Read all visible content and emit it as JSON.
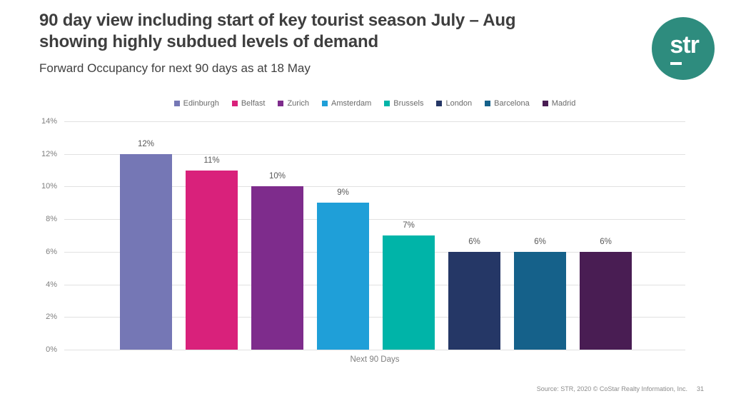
{
  "slide": {
    "title_line1": "90 day view including start of key tourist season July – Aug",
    "title_line2": "showing highly subdued levels of demand",
    "subtitle": "Forward Occupancy for next 90 days as at 18 May",
    "logo_text": "str",
    "footer_source": "Source: STR, 2020 © CoStar Realty Information, Inc.",
    "page_number": "31"
  },
  "chart_data": {
    "type": "bar",
    "title": "Forward Occupancy for next 90 days as at 18 May",
    "categories": [
      "Next 90 Days"
    ],
    "series": [
      {
        "name": "Edinburgh",
        "values": [
          12
        ],
        "color": "#7577b5"
      },
      {
        "name": "Belfast",
        "values": [
          11
        ],
        "color": "#d9217b"
      },
      {
        "name": "Zurich",
        "values": [
          10
        ],
        "color": "#7e2c8c"
      },
      {
        "name": "Amsterdam",
        "values": [
          9
        ],
        "color": "#1f9fd8"
      },
      {
        "name": "Brussels",
        "values": [
          7
        ],
        "color": "#00b4a8"
      },
      {
        "name": "London",
        "values": [
          6
        ],
        "color": "#253766"
      },
      {
        "name": "Barcelona",
        "values": [
          6
        ],
        "color": "#15618a"
      },
      {
        "name": "Madrid",
        "values": [
          6
        ],
        "color": "#491d53"
      }
    ],
    "data_labels": [
      "12%",
      "11%",
      "10%",
      "9%",
      "7%",
      "6%",
      "6%",
      "6%"
    ],
    "xlabel": "Next 90 Days",
    "ylabel": "",
    "ylim": [
      0,
      14
    ],
    "ytick_step": 2,
    "ytick_labels": [
      "0%",
      "2%",
      "4%",
      "6%",
      "8%",
      "10%",
      "12%",
      "14%"
    ],
    "grid": true,
    "legend_position": "top"
  },
  "colors": {
    "logo_background": "#2e8c7e",
    "title_text": "#3e3e3e",
    "axis_text": "#7f7f7f",
    "data_label_text": "#595959",
    "gridline": "#e1e1e1"
  }
}
